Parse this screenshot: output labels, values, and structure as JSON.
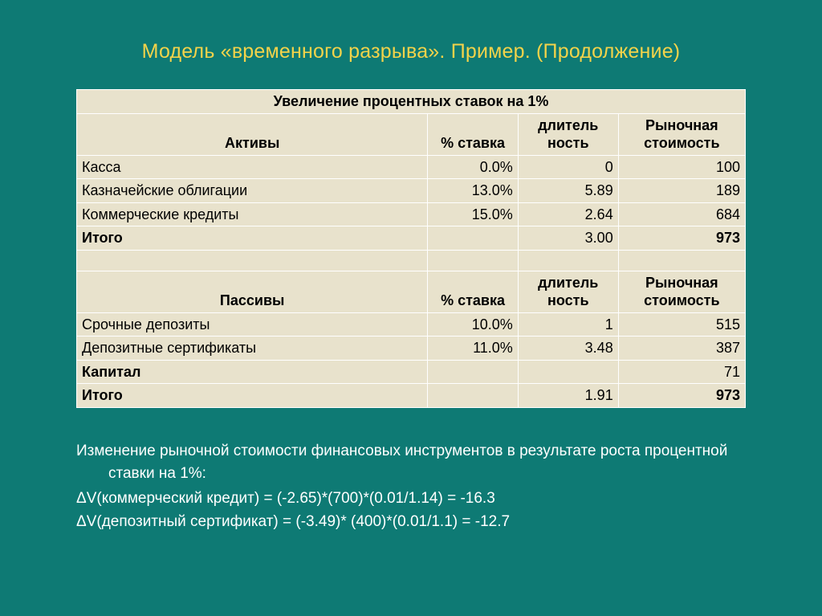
{
  "colors": {
    "background": "#0e7a74",
    "title": "#f3d34a",
    "cell_bg": "#e8e2cc",
    "cell_border": "#ffffff",
    "body_text": "#ffffff",
    "table_text": "#000000"
  },
  "title": "Модель «временного разрыва». Пример. (Продолжение)",
  "table": {
    "header_main": "Увеличение процентных ставок на 1%",
    "col_headers": {
      "assets_label": "Активы",
      "liabilities_label": "Пассивы",
      "rate": "% ставка",
      "duration": "длитель ность",
      "market_value": "Рыночная стоимость"
    },
    "assets": {
      "rows": [
        {
          "label": "Касса",
          "rate": "0.0%",
          "duration": "0",
          "value": "100"
        },
        {
          "label": "Казначейские облигации",
          "rate": "13.0%",
          "duration": "5.89",
          "value": "189"
        },
        {
          "label": "Коммерческие кредиты",
          "rate": "15.0%",
          "duration": "2.64",
          "value": "684"
        }
      ],
      "total": {
        "label": "Итого",
        "rate": "",
        "duration": "3.00",
        "value": "973"
      }
    },
    "liabilities": {
      "rows": [
        {
          "label": "Срочные депозиты",
          "rate": "10.0%",
          "duration": "1",
          "value": "515"
        },
        {
          "label": "Депозитные сертификаты",
          "rate": "11.0%",
          "duration": "3.48",
          "value": "387"
        }
      ],
      "capital": {
        "label": "Капитал",
        "rate": "",
        "duration": "",
        "value": "71"
      },
      "total": {
        "label": "Итого",
        "rate": "",
        "duration": "1.91",
        "value": "973"
      }
    }
  },
  "notes": {
    "intro": "Изменение рыночной стоимости финансовых инструментов в результате роста процентной ставки на 1%:",
    "line1": "ΔV(коммерческий кредит) = (-2.65)*(700)*(0.01/1.14) = -16.3",
    "line2": "ΔV(депозитный сертификат) = (-3.49)* (400)*(0.01/1.1) = -12.7"
  }
}
